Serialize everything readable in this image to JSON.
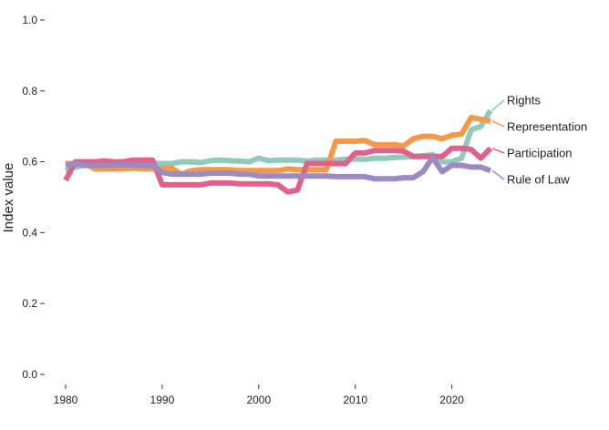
{
  "chart_data": {
    "type": "line",
    "title": "",
    "xlabel": "",
    "ylabel": "Index value",
    "xlim": [
      1980,
      2024
    ],
    "ylim": [
      0.0,
      1.0
    ],
    "xticks": [
      1980,
      1990,
      2000,
      2010,
      2020
    ],
    "yticks": [
      0.0,
      0.2,
      0.4,
      0.6,
      0.8,
      1.0
    ],
    "ytick_labels": [
      "0.0",
      "0.2",
      "0.4",
      "0.6",
      "0.8",
      "1.0"
    ],
    "grid": false,
    "legend": "direct labels at right end of lines",
    "x": [
      1980,
      1981,
      1982,
      1983,
      1984,
      1985,
      1986,
      1987,
      1988,
      1989,
      1990,
      1991,
      1992,
      1993,
      1994,
      1995,
      1996,
      1997,
      1998,
      1999,
      2000,
      2001,
      2002,
      2003,
      2004,
      2005,
      2006,
      2007,
      2008,
      2009,
      2010,
      2011,
      2012,
      2013,
      2014,
      2015,
      2016,
      2017,
      2018,
      2019,
      2020,
      2021,
      2022,
      2023,
      2024
    ],
    "series": [
      {
        "name": "Rights",
        "color": "#8ecbbd",
        "values": [
          0.575,
          0.585,
          0.59,
          0.59,
          0.59,
          0.59,
          0.59,
          0.595,
          0.595,
          0.595,
          0.595,
          0.595,
          0.6,
          0.6,
          0.598,
          0.603,
          0.605,
          0.603,
          0.602,
          0.6,
          0.61,
          0.603,
          0.605,
          0.605,
          0.605,
          0.602,
          0.605,
          0.605,
          0.605,
          0.607,
          0.608,
          0.607,
          0.61,
          0.61,
          0.612,
          0.613,
          0.615,
          0.617,
          0.62,
          0.6,
          0.6,
          0.61,
          0.69,
          0.7,
          0.745
        ]
      },
      {
        "name": "Representation",
        "color": "#f2994a",
        "values": [
          0.595,
          0.595,
          0.595,
          0.58,
          0.58,
          0.58,
          0.58,
          0.582,
          0.58,
          0.58,
          0.58,
          0.582,
          0.565,
          0.575,
          0.578,
          0.578,
          0.578,
          0.578,
          0.575,
          0.575,
          0.575,
          0.575,
          0.575,
          0.58,
          0.578,
          0.578,
          0.578,
          0.578,
          0.658,
          0.658,
          0.658,
          0.66,
          0.648,
          0.648,
          0.648,
          0.645,
          0.665,
          0.672,
          0.672,
          0.665,
          0.675,
          0.678,
          0.725,
          0.72,
          0.715
        ]
      },
      {
        "name": "Participation",
        "color": "#e0628a",
        "values": [
          0.548,
          0.6,
          0.6,
          0.6,
          0.602,
          0.6,
          0.6,
          0.605,
          0.605,
          0.605,
          0.535,
          0.535,
          0.535,
          0.535,
          0.535,
          0.54,
          0.54,
          0.54,
          0.538,
          0.538,
          0.538,
          0.538,
          0.535,
          0.515,
          0.52,
          0.595,
          0.595,
          0.595,
          0.595,
          0.595,
          0.625,
          0.625,
          0.632,
          0.632,
          0.632,
          0.63,
          0.615,
          0.615,
          0.615,
          0.615,
          0.638,
          0.638,
          0.635,
          0.61,
          0.638
        ]
      },
      {
        "name": "Rule of Law",
        "color": "#9c8ac3",
        "values": [
          0.59,
          0.595,
          0.59,
          0.59,
          0.59,
          0.59,
          0.592,
          0.59,
          0.59,
          0.59,
          0.57,
          0.565,
          0.565,
          0.565,
          0.565,
          0.568,
          0.568,
          0.568,
          0.565,
          0.565,
          0.56,
          0.56,
          0.56,
          0.56,
          0.56,
          0.56,
          0.56,
          0.56,
          0.558,
          0.558,
          0.558,
          0.558,
          0.552,
          0.552,
          0.552,
          0.555,
          0.555,
          0.572,
          0.612,
          0.572,
          0.59,
          0.59,
          0.585,
          0.585,
          0.575
        ]
      }
    ]
  }
}
